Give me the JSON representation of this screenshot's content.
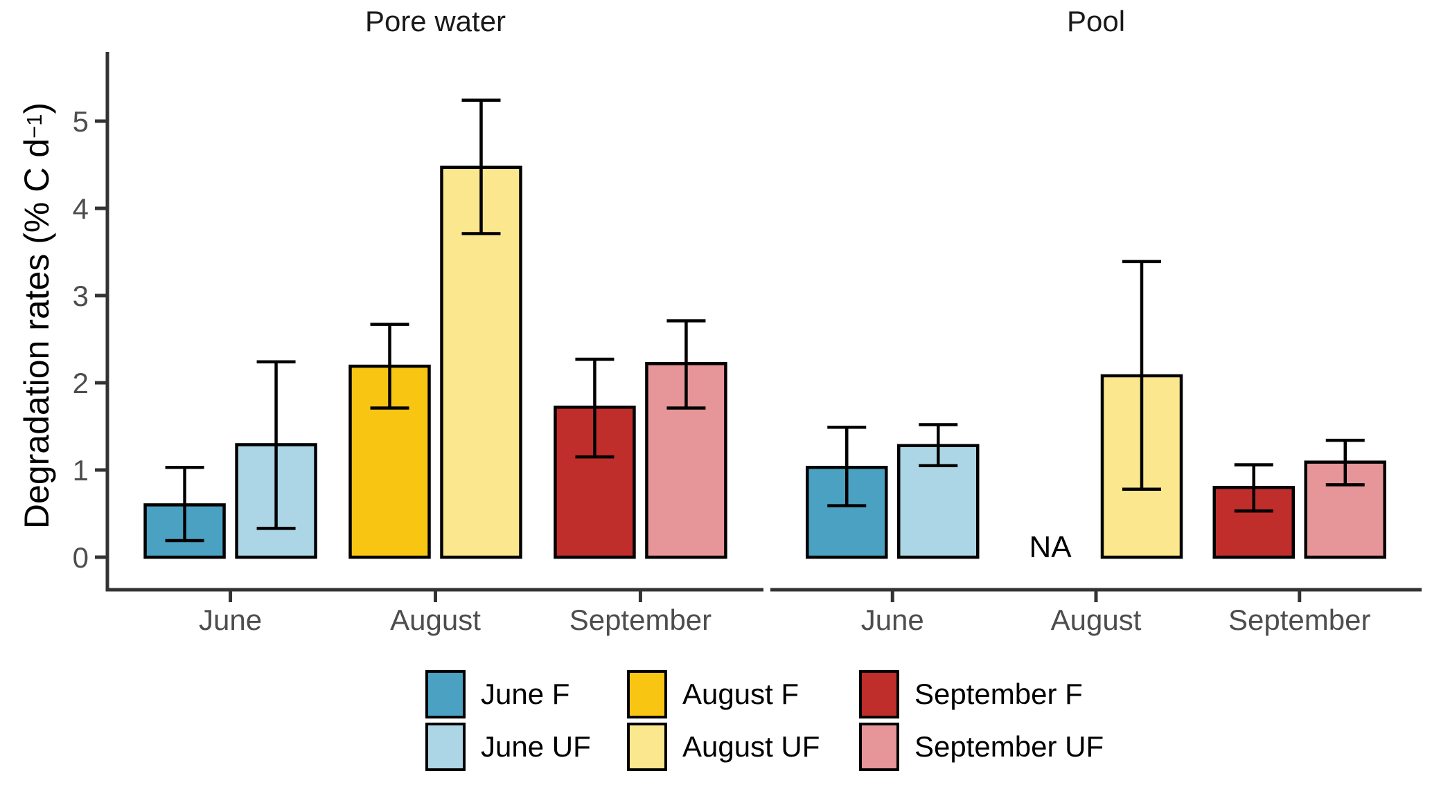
{
  "figure": {
    "na_label": "NA",
    "y_axis_title": {
      "prefix": "Degradation rates (% C d",
      "sup": "−1",
      "suffix": ")"
    }
  },
  "chart_data": {
    "type": "bar",
    "title": "",
    "categories": [
      "June",
      "August",
      "September"
    ],
    "yticks": [
      0,
      1,
      2,
      3,
      4,
      5
    ],
    "ylim": [
      0,
      5.8
    ],
    "ylabel": "Degradation rates (% C d−1)",
    "grid": false,
    "legend_position": "bottom",
    "bar_groups": [
      "F",
      "UF"
    ],
    "palette": {
      "June F": "#4AA1C2",
      "June UF": "#ACD6E5",
      "August F": "#F9C513",
      "August UF": "#FBE78E",
      "September F": "#BF2E2B",
      "September UF": "#E69598"
    },
    "legend": [
      {
        "label": "June F",
        "color": "#4AA1C2"
      },
      {
        "label": "June UF",
        "color": "#ACD6E5"
      },
      {
        "label": "August F",
        "color": "#F9C513"
      },
      {
        "label": "August UF",
        "color": "#FBE78E"
      },
      {
        "label": "September F",
        "color": "#BF2E2B"
      },
      {
        "label": "September UF",
        "color": "#E69598"
      }
    ],
    "panels": [
      {
        "title": "Pore water",
        "bars": [
          {
            "category": "June",
            "group": "F",
            "series": "June F",
            "value": 0.6,
            "err_low": 0.19,
            "err_high": 1.03
          },
          {
            "category": "June",
            "group": "UF",
            "series": "June UF",
            "value": 1.29,
            "err_low": 0.33,
            "err_high": 2.24
          },
          {
            "category": "August",
            "group": "F",
            "series": "August F",
            "value": 2.19,
            "err_low": 1.71,
            "err_high": 2.67
          },
          {
            "category": "August",
            "group": "UF",
            "series": "August UF",
            "value": 4.47,
            "err_low": 3.71,
            "err_high": 5.24
          },
          {
            "category": "September",
            "group": "F",
            "series": "September F",
            "value": 1.72,
            "err_low": 1.15,
            "err_high": 2.27
          },
          {
            "category": "September",
            "group": "UF",
            "series": "September UF",
            "value": 2.22,
            "err_low": 1.71,
            "err_high": 2.71
          }
        ]
      },
      {
        "title": "Pool",
        "bars": [
          {
            "category": "June",
            "group": "F",
            "series": "June F",
            "value": 1.03,
            "err_low": 0.59,
            "err_high": 1.49
          },
          {
            "category": "June",
            "group": "UF",
            "series": "June UF",
            "value": 1.28,
            "err_low": 1.05,
            "err_high": 1.52
          },
          {
            "category": "August",
            "group": "F",
            "series": "August F",
            "value": null,
            "na": true
          },
          {
            "category": "August",
            "group": "UF",
            "series": "August UF",
            "value": 2.08,
            "err_low": 0.78,
            "err_high": 3.39
          },
          {
            "category": "September",
            "group": "F",
            "series": "September F",
            "value": 0.8,
            "err_low": 0.53,
            "err_high": 1.06
          },
          {
            "category": "September",
            "group": "UF",
            "series": "September UF",
            "value": 1.09,
            "err_low": 0.83,
            "err_high": 1.34
          }
        ]
      }
    ]
  }
}
